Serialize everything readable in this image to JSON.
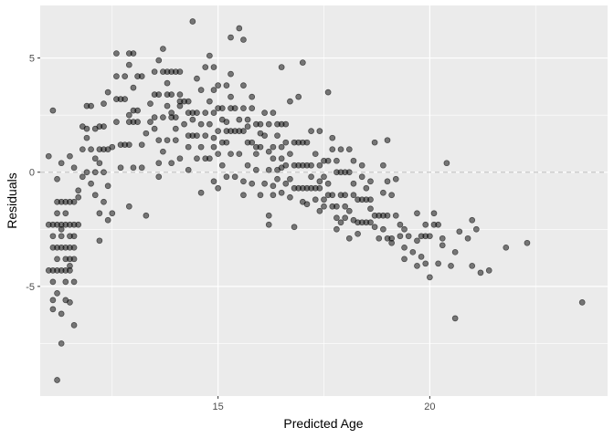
{
  "chart_data": {
    "type": "scatter",
    "title": "",
    "xlabel": "Predicted Age",
    "ylabel": "Residuals",
    "xlim": [
      10.8,
      24.2
    ],
    "ylim": [
      -9.8,
      7.3
    ],
    "x_ticks": [
      15,
      20
    ],
    "x_tick_labels": [
      "15",
      "20"
    ],
    "y_ticks": [
      -5,
      0,
      5
    ],
    "y_tick_labels": [
      "-5",
      "0",
      "5"
    ],
    "grid": true,
    "background": "#ebebeb",
    "grid_color": "#ffffff",
    "point_color": "#000000",
    "point_alpha": 0.5,
    "reference_line": {
      "y": 0,
      "style": "dashed",
      "color": "#c8c8c8"
    },
    "points": [
      [
        11.1,
        -4.3
      ],
      [
        11.2,
        -4.3
      ],
      [
        11.3,
        -4.3
      ],
      [
        11.4,
        -4.3
      ],
      [
        11.5,
        -4.3
      ],
      [
        11.0,
        -4.3
      ],
      [
        11.1,
        -3.3
      ],
      [
        11.2,
        -3.3
      ],
      [
        11.3,
        -3.3
      ],
      [
        11.4,
        -3.3
      ],
      [
        11.5,
        -3.3
      ],
      [
        11.6,
        -3.3
      ],
      [
        11.0,
        -2.3
      ],
      [
        11.1,
        -2.3
      ],
      [
        11.2,
        -2.3
      ],
      [
        11.3,
        -2.3
      ],
      [
        11.4,
        -2.3
      ],
      [
        11.5,
        -2.3
      ],
      [
        11.6,
        -2.3
      ],
      [
        11.7,
        -2.3
      ],
      [
        11.2,
        -1.3
      ],
      [
        11.3,
        -1.3
      ],
      [
        11.4,
        -1.3
      ],
      [
        11.5,
        -1.3
      ],
      [
        11.6,
        -1.3
      ],
      [
        11.1,
        -2.8
      ],
      [
        11.3,
        -2.8
      ],
      [
        11.5,
        -2.8
      ],
      [
        11.6,
        -2.8
      ],
      [
        11.2,
        -3.8
      ],
      [
        11.4,
        -3.8
      ],
      [
        11.5,
        -3.8
      ],
      [
        11.1,
        -4.8
      ],
      [
        11.4,
        -4.8
      ],
      [
        11.6,
        -4.8
      ],
      [
        11.2,
        -5.3
      ],
      [
        11.4,
        -5.6
      ],
      [
        11.5,
        -5.7
      ],
      [
        11.1,
        -5.6
      ],
      [
        11.3,
        -6.2
      ],
      [
        11.6,
        -6.7
      ],
      [
        11.3,
        -7.5
      ],
      [
        11.2,
        -9.1
      ],
      [
        11.1,
        -6.0
      ],
      [
        11.0,
        0.7
      ],
      [
        11.1,
        2.7
      ],
      [
        11.2,
        -0.3
      ],
      [
        11.3,
        0.4
      ],
      [
        11.5,
        0.7
      ],
      [
        11.6,
        0.2
      ],
      [
        11.7,
        -0.8
      ],
      [
        11.2,
        -1.8
      ],
      [
        11.4,
        -1.8
      ],
      [
        11.3,
        -2.5
      ],
      [
        11.7,
        -1.1
      ],
      [
        11.6,
        -3.8
      ],
      [
        11.5,
        -4.1
      ],
      [
        11.8,
        1.0
      ],
      [
        11.8,
        2.0
      ],
      [
        11.9,
        2.9
      ],
      [
        11.9,
        1.5
      ],
      [
        11.9,
        0.0
      ],
      [
        12.0,
        -0.5
      ],
      [
        12.0,
        2.9
      ],
      [
        12.0,
        1.0
      ],
      [
        12.1,
        0.0
      ],
      [
        12.1,
        -1.0
      ],
      [
        12.1,
        1.9
      ],
      [
        12.2,
        -3.0
      ],
      [
        12.2,
        -1.8
      ],
      [
        12.2,
        0.4
      ],
      [
        12.2,
        1.0
      ],
      [
        12.2,
        2.0
      ],
      [
        12.3,
        0.0
      ],
      [
        12.3,
        -1.3
      ],
      [
        12.3,
        2.0
      ],
      [
        12.3,
        3.0
      ],
      [
        12.3,
        1.0
      ],
      [
        12.4,
        -0.6
      ],
      [
        12.4,
        1.0
      ],
      [
        12.4,
        -2.1
      ],
      [
        12.4,
        3.5
      ],
      [
        12.5,
        1.1
      ],
      [
        12.5,
        -1.8
      ],
      [
        12.6,
        3.2
      ],
      [
        12.6,
        2.2
      ],
      [
        12.6,
        5.2
      ],
      [
        12.7,
        1.2
      ],
      [
        12.7,
        3.2
      ],
      [
        12.7,
        0.2
      ],
      [
        12.8,
        4.2
      ],
      [
        12.8,
        1.2
      ],
      [
        12.8,
        3.2
      ],
      [
        12.9,
        5.2
      ],
      [
        12.9,
        2.2
      ],
      [
        12.9,
        4.7
      ],
      [
        12.9,
        1.2
      ],
      [
        12.9,
        -1.5
      ],
      [
        13.0,
        3.7
      ],
      [
        13.0,
        2.7
      ],
      [
        13.0,
        2.2
      ],
      [
        13.0,
        5.2
      ],
      [
        13.0,
        0.2
      ],
      [
        13.1,
        2.7
      ],
      [
        13.1,
        4.2
      ],
      [
        13.1,
        2.2
      ],
      [
        13.2,
        4.2
      ],
      [
        13.2,
        0.2
      ],
      [
        13.2,
        1.2
      ],
      [
        13.3,
        1.7
      ],
      [
        13.3,
        -1.9
      ],
      [
        13.4,
        2.2
      ],
      [
        13.5,
        3.4
      ],
      [
        13.5,
        4.4
      ],
      [
        13.5,
        2.4
      ],
      [
        13.6,
        1.4
      ],
      [
        13.6,
        0.4
      ],
      [
        13.6,
        3.4
      ],
      [
        13.6,
        4.9
      ],
      [
        13.6,
        -0.2
      ],
      [
        13.7,
        2.4
      ],
      [
        13.7,
        4.4
      ],
      [
        13.7,
        5.4
      ],
      [
        13.7,
        0.9
      ],
      [
        13.8,
        3.4
      ],
      [
        13.8,
        1.4
      ],
      [
        13.8,
        3.9
      ],
      [
        13.8,
        4.4
      ],
      [
        13.8,
        2.9
      ],
      [
        13.9,
        0.4
      ],
      [
        13.9,
        2.4
      ],
      [
        13.9,
        3.4
      ],
      [
        13.9,
        4.4
      ],
      [
        14.0,
        1.9
      ],
      [
        14.0,
        2.4
      ],
      [
        14.0,
        4.4
      ],
      [
        14.0,
        1.4
      ],
      [
        14.1,
        3.4
      ],
      [
        14.1,
        4.4
      ],
      [
        14.1,
        0.6
      ],
      [
        14.1,
        2.9
      ],
      [
        14.2,
        3.1
      ],
      [
        14.2,
        2.1
      ],
      [
        14.3,
        1.1
      ],
      [
        14.3,
        2.6
      ],
      [
        14.3,
        0.1
      ],
      [
        14.3,
        1.6
      ],
      [
        14.3,
        3.1
      ],
      [
        14.4,
        1.6
      ],
      [
        14.4,
        2.6
      ],
      [
        14.4,
        6.6
      ],
      [
        14.5,
        1.6
      ],
      [
        14.5,
        2.6
      ],
      [
        14.5,
        0.6
      ],
      [
        14.5,
        4.1
      ],
      [
        14.6,
        3.6
      ],
      [
        14.6,
        1.1
      ],
      [
        14.6,
        2.1
      ],
      [
        14.6,
        -0.9
      ],
      [
        14.7,
        2.6
      ],
      [
        14.7,
        0.6
      ],
      [
        14.7,
        1.6
      ],
      [
        14.7,
        4.6
      ],
      [
        14.8,
        0.6
      ],
      [
        14.8,
        3.1
      ],
      [
        14.8,
        5.1
      ],
      [
        14.8,
        2.1
      ],
      [
        14.9,
        1.1
      ],
      [
        14.9,
        -0.4
      ],
      [
        14.9,
        2.6
      ],
      [
        14.9,
        3.6
      ],
      [
        14.9,
        4.6
      ],
      [
        15.0,
        2.8
      ],
      [
        15.0,
        1.8
      ],
      [
        15.0,
        0.8
      ],
      [
        15.0,
        -0.7
      ],
      [
        15.0,
        3.8
      ],
      [
        15.1,
        2.3
      ],
      [
        15.1,
        1.3
      ],
      [
        15.1,
        0.3
      ],
      [
        15.1,
        2.8
      ],
      [
        15.2,
        1.8
      ],
      [
        15.2,
        3.8
      ],
      [
        15.2,
        1.3
      ],
      [
        15.2,
        -0.2
      ],
      [
        15.3,
        0.8
      ],
      [
        15.3,
        2.8
      ],
      [
        15.3,
        4.3
      ],
      [
        15.3,
        1.8
      ],
      [
        15.3,
        3.3
      ],
      [
        15.4,
        1.8
      ],
      [
        15.4,
        -0.2
      ],
      [
        15.4,
        2.8
      ],
      [
        15.5,
        1.8
      ],
      [
        15.5,
        0.8
      ],
      [
        15.5,
        6.3
      ],
      [
        15.5,
        2.3
      ],
      [
        15.6,
        2.8
      ],
      [
        15.6,
        -1.0
      ],
      [
        15.6,
        1.8
      ],
      [
        15.6,
        3.8
      ],
      [
        15.6,
        5.8
      ],
      [
        15.7,
        1.3
      ],
      [
        15.7,
        0.3
      ],
      [
        15.7,
        2.3
      ],
      [
        15.8,
        1.3
      ],
      [
        15.8,
        -0.5
      ],
      [
        15.8,
        2.8
      ],
      [
        15.8,
        3.3
      ],
      [
        15.9,
        1.1
      ],
      [
        15.9,
        2.1
      ],
      [
        15.9,
        0.1
      ],
      [
        16.0,
        -1.0
      ],
      [
        16.0,
        2.1
      ],
      [
        16.0,
        1.1
      ],
      [
        16.1,
        2.6
      ],
      [
        16.1,
        -0.5
      ],
      [
        16.1,
        1.6
      ],
      [
        16.2,
        -1.9
      ],
      [
        16.2,
        0.1
      ],
      [
        16.2,
        2.1
      ],
      [
        16.2,
        -2.3
      ],
      [
        16.3,
        1.1
      ],
      [
        16.3,
        0.6
      ],
      [
        16.3,
        2.6
      ],
      [
        16.3,
        -1.0
      ],
      [
        16.4,
        2.1
      ],
      [
        16.4,
        0.1
      ],
      [
        16.4,
        1.6
      ],
      [
        16.4,
        -0.3
      ],
      [
        16.5,
        2.1
      ],
      [
        16.5,
        0.6
      ],
      [
        16.5,
        1.1
      ],
      [
        16.5,
        -0.9
      ],
      [
        16.5,
        4.6
      ],
      [
        16.6,
        2.1
      ],
      [
        16.6,
        1.3
      ],
      [
        16.6,
        -0.5
      ],
      [
        16.6,
        0.3
      ],
      [
        16.7,
        3.1
      ],
      [
        16.7,
        -1.1
      ],
      [
        16.7,
        0.8
      ],
      [
        16.8,
        0.3
      ],
      [
        16.8,
        1.3
      ],
      [
        16.8,
        -0.7
      ],
      [
        16.8,
        -2.4
      ],
      [
        16.9,
        1.3
      ],
      [
        16.9,
        -0.7
      ],
      [
        16.9,
        3.3
      ],
      [
        16.9,
        0.3
      ],
      [
        17.0,
        1.3
      ],
      [
        17.0,
        -0.7
      ],
      [
        17.0,
        0.3
      ],
      [
        17.0,
        4.8
      ],
      [
        17.1,
        -0.7
      ],
      [
        17.1,
        0.3
      ],
      [
        17.1,
        1.3
      ],
      [
        17.1,
        -1.4
      ],
      [
        17.2,
        -0.7
      ],
      [
        17.2,
        0.3
      ],
      [
        17.2,
        1.8
      ],
      [
        17.2,
        -0.2
      ],
      [
        17.3,
        -0.7
      ],
      [
        17.3,
        0.8
      ],
      [
        17.3,
        -1.2
      ],
      [
        17.4,
        0.3
      ],
      [
        17.4,
        -1.7
      ],
      [
        17.4,
        1.8
      ],
      [
        17.4,
        -0.7
      ],
      [
        17.5,
        -0.2
      ],
      [
        17.5,
        0.5
      ],
      [
        17.5,
        -1.2
      ],
      [
        17.5,
        -1.5
      ],
      [
        17.6,
        0.5
      ],
      [
        17.6,
        -1.0
      ],
      [
        17.6,
        -0.5
      ],
      [
        17.7,
        1.5
      ],
      [
        17.7,
        -1.5
      ],
      [
        17.7,
        1.0
      ],
      [
        17.7,
        -1.0
      ],
      [
        17.8,
        0.0
      ],
      [
        17.8,
        -2.0
      ],
      [
        17.8,
        -2.5
      ],
      [
        17.8,
        -1.5
      ],
      [
        17.8,
        0.5
      ],
      [
        17.9,
        0.0
      ],
      [
        17.9,
        -1.0
      ],
      [
        17.9,
        1.0
      ],
      [
        18.0,
        0.0
      ],
      [
        18.0,
        -1.5
      ],
      [
        18.0,
        -2.0
      ],
      [
        18.0,
        -1.0
      ],
      [
        18.1,
        0.0
      ],
      [
        18.1,
        -2.9
      ],
      [
        18.1,
        1.0
      ],
      [
        18.2,
        -0.5
      ],
      [
        18.2,
        -1.0
      ],
      [
        18.2,
        0.5
      ],
      [
        18.3,
        -1.2
      ],
      [
        18.3,
        -2.7
      ],
      [
        18.3,
        -2.2
      ],
      [
        18.4,
        -1.2
      ],
      [
        18.4,
        -2.2
      ],
      [
        18.4,
        -0.2
      ],
      [
        18.4,
        0.3
      ],
      [
        18.5,
        -1.2
      ],
      [
        18.5,
        -2.2
      ],
      [
        18.5,
        -0.7
      ],
      [
        18.6,
        -2.2
      ],
      [
        18.6,
        -1.2
      ],
      [
        18.6,
        -0.4
      ],
      [
        18.7,
        -2.4
      ],
      [
        18.7,
        -1.9
      ],
      [
        18.7,
        1.3
      ],
      [
        18.8,
        -1.9
      ],
      [
        18.8,
        -2.9
      ],
      [
        18.9,
        -1.9
      ],
      [
        18.9,
        -0.9
      ],
      [
        19.0,
        -1.9
      ],
      [
        19.0,
        -2.9
      ],
      [
        19.0,
        -0.4
      ],
      [
        19.0,
        1.4
      ],
      [
        19.1,
        -2.9
      ],
      [
        19.1,
        -1.0
      ],
      [
        19.1,
        -3.1
      ],
      [
        19.2,
        -0.3
      ],
      [
        19.2,
        -1.9
      ],
      [
        19.3,
        -2.3
      ],
      [
        19.3,
        -2.8
      ],
      [
        19.4,
        -3.8
      ],
      [
        19.4,
        -3.3
      ],
      [
        19.5,
        -2.8
      ],
      [
        19.6,
        -3.5
      ],
      [
        19.7,
        -1.8
      ],
      [
        19.7,
        -4.1
      ],
      [
        19.8,
        -2.8
      ],
      [
        19.8,
        -3.7
      ],
      [
        19.9,
        -2.8
      ],
      [
        19.9,
        -2.3
      ],
      [
        20.0,
        -2.8
      ],
      [
        20.0,
        -4.6
      ],
      [
        20.1,
        -1.8
      ],
      [
        20.1,
        -2.3
      ],
      [
        20.2,
        -2.3
      ],
      [
        20.2,
        -4.0
      ],
      [
        20.3,
        -3.2
      ],
      [
        20.4,
        0.4
      ],
      [
        20.5,
        -4.1
      ],
      [
        20.6,
        -6.4
      ],
      [
        20.7,
        -2.6
      ],
      [
        20.9,
        -2.9
      ],
      [
        21.0,
        -2.1
      ],
      [
        21.0,
        -4.1
      ],
      [
        21.1,
        -2.5
      ],
      [
        21.4,
        -4.3
      ],
      [
        21.8,
        -3.3
      ],
      [
        22.3,
        -3.1
      ],
      [
        23.6,
        -5.7
      ],
      [
        18.2,
        -2.1
      ],
      [
        18.9,
        0.3
      ],
      [
        17.6,
        3.5
      ],
      [
        15.3,
        5.9
      ],
      [
        14.1,
        3.1
      ],
      [
        13.4,
        3.0
      ],
      [
        12.6,
        4.2
      ],
      [
        12.1,
        0.6
      ],
      [
        11.9,
        1.9
      ],
      [
        11.8,
        -0.2
      ],
      [
        16.0,
        1.7
      ],
      [
        16.2,
        0.9
      ],
      [
        16.5,
        0.2
      ],
      [
        17.4,
        -0.4
      ],
      [
        17.9,
        -2.2
      ],
      [
        18.6,
        -1.6
      ],
      [
        19.4,
        -2.5
      ],
      [
        15.6,
        -0.4
      ],
      [
        15.9,
        0.8
      ],
      [
        16.3,
        -0.6
      ],
      [
        16.7,
        -0.3
      ],
      [
        17.0,
        -1.3
      ],
      [
        18.1,
        -1.7
      ],
      [
        18.9,
        -2.5
      ],
      [
        13.9,
        2.6
      ],
      [
        14.4,
        2.3
      ],
      [
        15.2,
        2.2
      ],
      [
        15.7,
        2.0
      ],
      [
        14.9,
        1.5
      ],
      [
        13.5,
        1.9
      ],
      [
        12.9,
        2.5
      ],
      [
        20.6,
        -3.5
      ],
      [
        19.7,
        -3.0
      ],
      [
        21.2,
        -4.4
      ],
      [
        20.3,
        -2.9
      ],
      [
        19.9,
        -4.0
      ]
    ]
  }
}
